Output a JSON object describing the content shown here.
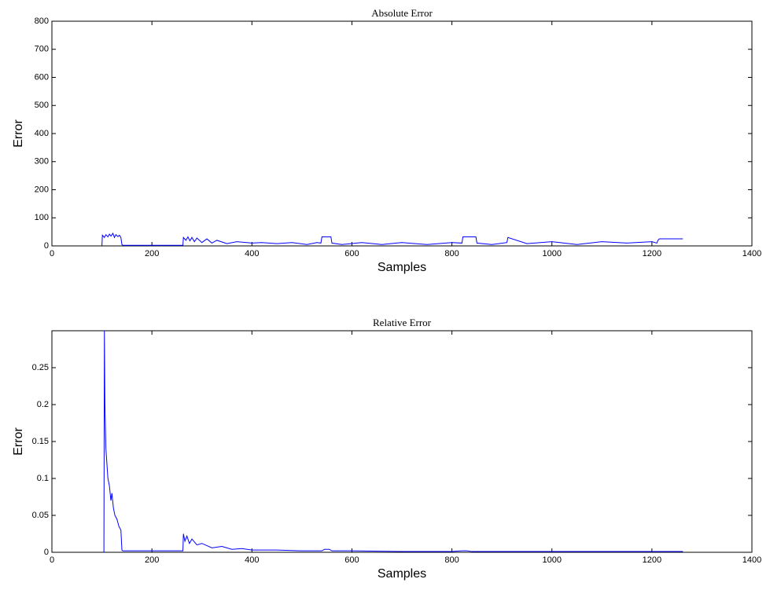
{
  "chart_data": [
    {
      "type": "line",
      "title": "Absolute Error",
      "xlabel": "Samples",
      "ylabel": "Error",
      "color": "#0000ff",
      "xlim": [
        0,
        1400
      ],
      "xticks": [
        0,
        200,
        400,
        600,
        800,
        1000,
        1200,
        1400
      ],
      "ylim": [
        0,
        800
      ],
      "yticks": [
        0,
        100,
        200,
        300,
        400,
        500,
        600,
        700,
        800
      ],
      "x": [
        100,
        101,
        105,
        108,
        112,
        115,
        118,
        122,
        125,
        128,
        132,
        135,
        138,
        140,
        142,
        200,
        260,
        262,
        263,
        268,
        272,
        276,
        280,
        285,
        290,
        300,
        310,
        320,
        330,
        350,
        370,
        400,
        420,
        450,
        480,
        510,
        530,
        538,
        540,
        558,
        560,
        580,
        620,
        660,
        700,
        750,
        800,
        820,
        822,
        848,
        850,
        880,
        910,
        912,
        950,
        1000,
        1050,
        1100,
        1150,
        1200,
        1210,
        1212,
        1215,
        1262
      ],
      "values": [
        0,
        38,
        30,
        40,
        32,
        42,
        35,
        45,
        30,
        40,
        33,
        38,
        30,
        5,
        2,
        2,
        2,
        2,
        30,
        20,
        32,
        18,
        30,
        15,
        28,
        12,
        25,
        10,
        20,
        8,
        15,
        10,
        12,
        8,
        12,
        5,
        12,
        10,
        32,
        32,
        10,
        5,
        12,
        5,
        12,
        5,
        12,
        10,
        32,
        32,
        10,
        5,
        12,
        30,
        8,
        15,
        5,
        15,
        10,
        15,
        10,
        20,
        25,
        25
      ]
    },
    {
      "type": "line",
      "title": "Relative Error",
      "xlabel": "Samples",
      "ylabel": "Error",
      "color": "#0000ff",
      "xlim": [
        0,
        1400
      ],
      "xticks": [
        0,
        200,
        400,
        600,
        800,
        1000,
        1200,
        1400
      ],
      "ylim": [
        0,
        0.3
      ],
      "yticks": [
        0,
        0.05,
        0.1,
        0.15,
        0.2,
        0.25
      ],
      "x": [
        104,
        105,
        106,
        108,
        110,
        112,
        115,
        118,
        120,
        123,
        126,
        130,
        134,
        138,
        140,
        142,
        200,
        262,
        263,
        266,
        270,
        275,
        280,
        290,
        300,
        320,
        340,
        360,
        380,
        400,
        450,
        500,
        540,
        545,
        555,
        560,
        600,
        700,
        800,
        820,
        830,
        840,
        900,
        1000,
        1100,
        1200,
        1262
      ],
      "values": [
        0,
        0.3,
        0.2,
        0.14,
        0.12,
        0.1,
        0.09,
        0.07,
        0.08,
        0.06,
        0.05,
        0.045,
        0.035,
        0.03,
        0.003,
        0.002,
        0.002,
        0.002,
        0.025,
        0.015,
        0.022,
        0.012,
        0.018,
        0.01,
        0.012,
        0.006,
        0.008,
        0.004,
        0.005,
        0.003,
        0.003,
        0.002,
        0.002,
        0.004,
        0.004,
        0.002,
        0.002,
        0.001,
        0.001,
        0.002,
        0.002,
        0.001,
        0.001,
        0.001,
        0.001,
        0.001,
        0.001
      ]
    }
  ]
}
